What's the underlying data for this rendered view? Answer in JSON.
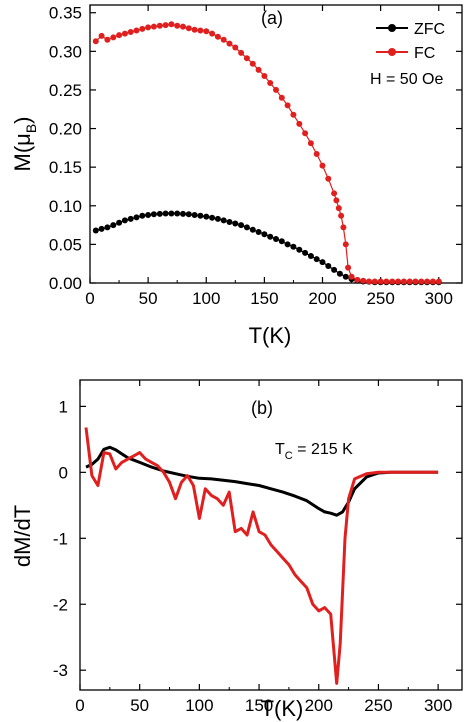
{
  "chart_data": [
    {
      "type": "scatter",
      "panel_label": "(a)",
      "xlabel": "T(K)",
      "ylabel_main": "M(μ",
      "ylabel_sub": "B",
      "ylabel_end": ")",
      "xlim": [
        0,
        320
      ],
      "ylim": [
        0,
        0.36
      ],
      "xticks": [
        0,
        50,
        100,
        150,
        200,
        250,
        300
      ],
      "yticks": [
        0.0,
        0.05,
        0.1,
        0.15,
        0.2,
        0.25,
        0.3,
        0.35
      ],
      "annotation": "H = 50 Oe",
      "legend_position": "top-right",
      "series": [
        {
          "name": "ZFC",
          "color": "#000000",
          "points": [
            [
              5,
              0.068
            ],
            [
              10,
              0.07
            ],
            [
              15,
              0.072
            ],
            [
              20,
              0.075
            ],
            [
              25,
              0.078
            ],
            [
              30,
              0.081
            ],
            [
              35,
              0.083
            ],
            [
              40,
              0.085
            ],
            [
              45,
              0.087
            ],
            [
              50,
              0.088
            ],
            [
              55,
              0.089
            ],
            [
              60,
              0.0895
            ],
            [
              65,
              0.09
            ],
            [
              70,
              0.09
            ],
            [
              75,
              0.09
            ],
            [
              80,
              0.0895
            ],
            [
              85,
              0.089
            ],
            [
              90,
              0.088
            ],
            [
              95,
              0.087
            ],
            [
              100,
              0.086
            ],
            [
              105,
              0.0845
            ],
            [
              110,
              0.083
            ],
            [
              115,
              0.081
            ],
            [
              120,
              0.079
            ],
            [
              125,
              0.077
            ],
            [
              130,
              0.075
            ],
            [
              135,
              0.072
            ],
            [
              140,
              0.069
            ],
            [
              145,
              0.066
            ],
            [
              150,
              0.063
            ],
            [
              155,
              0.06
            ],
            [
              160,
              0.057
            ],
            [
              165,
              0.054
            ],
            [
              170,
              0.05
            ],
            [
              175,
              0.047
            ],
            [
              180,
              0.043
            ],
            [
              185,
              0.039
            ],
            [
              190,
              0.035
            ],
            [
              195,
              0.031
            ],
            [
              200,
              0.027
            ],
            [
              205,
              0.022
            ],
            [
              210,
              0.017
            ],
            [
              215,
              0.012
            ],
            [
              220,
              0.008
            ],
            [
              225,
              0.005
            ],
            [
              230,
              0.003
            ],
            [
              235,
              0.002
            ],
            [
              240,
              0.0015
            ],
            [
              245,
              0.001
            ],
            [
              250,
              0.001
            ],
            [
              255,
              0.001
            ],
            [
              260,
              0.001
            ],
            [
              265,
              0.001
            ],
            [
              270,
              0.001
            ],
            [
              275,
              0.001
            ],
            [
              280,
              0.001
            ],
            [
              285,
              0.001
            ],
            [
              290,
              0.001
            ],
            [
              295,
              0.001
            ],
            [
              300,
              0.001
            ]
          ]
        },
        {
          "name": "FC",
          "color": "#e0201e",
          "points": [
            [
              5,
              0.313
            ],
            [
              10,
              0.32
            ],
            [
              15,
              0.315
            ],
            [
              20,
              0.318
            ],
            [
              25,
              0.321
            ],
            [
              30,
              0.323
            ],
            [
              35,
              0.325
            ],
            [
              40,
              0.327
            ],
            [
              45,
              0.329
            ],
            [
              50,
              0.331
            ],
            [
              55,
              0.332
            ],
            [
              60,
              0.333
            ],
            [
              65,
              0.334
            ],
            [
              70,
              0.335
            ],
            [
              75,
              0.333
            ],
            [
              80,
              0.332
            ],
            [
              85,
              0.33
            ],
            [
              90,
              0.328
            ],
            [
              95,
              0.327
            ],
            [
              100,
              0.326
            ],
            [
              105,
              0.323
            ],
            [
              110,
              0.319
            ],
            [
              115,
              0.315
            ],
            [
              120,
              0.31
            ],
            [
              125,
              0.305
            ],
            [
              130,
              0.298
            ],
            [
              135,
              0.291
            ],
            [
              140,
              0.284
            ],
            [
              145,
              0.276
            ],
            [
              150,
              0.268
            ],
            [
              155,
              0.259
            ],
            [
              160,
              0.25
            ],
            [
              165,
              0.24
            ],
            [
              170,
              0.23
            ],
            [
              175,
              0.218
            ],
            [
              180,
              0.206
            ],
            [
              185,
              0.194
            ],
            [
              190,
              0.181
            ],
            [
              195,
              0.167
            ],
            [
              200,
              0.152
            ],
            [
              205,
              0.135
            ],
            [
              210,
              0.116
            ],
            [
              212,
              0.107
            ],
            [
              214,
              0.097
            ],
            [
              216,
              0.087
            ],
            [
              218,
              0.072
            ],
            [
              220,
              0.05
            ],
            [
              222,
              0.02
            ],
            [
              225,
              0.008
            ],
            [
              230,
              0.004
            ],
            [
              235,
              0.003
            ],
            [
              240,
              0.002
            ],
            [
              245,
              0.002
            ],
            [
              250,
              0.002
            ],
            [
              255,
              0.002
            ],
            [
              260,
              0.002
            ],
            [
              265,
              0.002
            ],
            [
              270,
              0.002
            ],
            [
              275,
              0.002
            ],
            [
              280,
              0.002
            ],
            [
              285,
              0.002
            ],
            [
              290,
              0.002
            ],
            [
              295,
              0.002
            ],
            [
              300,
              0.002
            ]
          ]
        }
      ]
    },
    {
      "type": "line",
      "panel_label": "(b)",
      "xlabel": "T(K)",
      "ylabel": "dM/dT",
      "xlim": [
        0,
        320
      ],
      "ylim": [
        -3.3,
        1.4
      ],
      "xticks": [
        0,
        50,
        100,
        150,
        200,
        250,
        300
      ],
      "yticks": [
        1,
        0,
        -1,
        -2,
        -3
      ],
      "annotation_main": "T",
      "annotation_sub": "C",
      "annotation_end": " = 215 K",
      "series": [
        {
          "name": "ZFC",
          "color": "#000000",
          "points": [
            [
              5,
              0.08
            ],
            [
              10,
              0.12
            ],
            [
              15,
              0.2
            ],
            [
              20,
              0.35
            ],
            [
              25,
              0.38
            ],
            [
              30,
              0.34
            ],
            [
              35,
              0.28
            ],
            [
              40,
              0.22
            ],
            [
              50,
              0.15
            ],
            [
              60,
              0.08
            ],
            [
              70,
              0.02
            ],
            [
              80,
              -0.02
            ],
            [
              90,
              -0.06
            ],
            [
              100,
              -0.09
            ],
            [
              110,
              -0.1
            ],
            [
              120,
              -0.12
            ],
            [
              130,
              -0.14
            ],
            [
              140,
              -0.17
            ],
            [
              150,
              -0.2
            ],
            [
              160,
              -0.25
            ],
            [
              170,
              -0.3
            ],
            [
              180,
              -0.36
            ],
            [
              190,
              -0.43
            ],
            [
              200,
              -0.55
            ],
            [
              205,
              -0.6
            ],
            [
              210,
              -0.62
            ],
            [
              215,
              -0.65
            ],
            [
              220,
              -0.6
            ],
            [
              225,
              -0.45
            ],
            [
              230,
              -0.25
            ],
            [
              240,
              -0.07
            ],
            [
              250,
              -0.01
            ],
            [
              260,
              0
            ],
            [
              270,
              0
            ],
            [
              280,
              0
            ],
            [
              290,
              0
            ],
            [
              300,
              0
            ]
          ]
        },
        {
          "name": "FC",
          "color": "#e0201e",
          "points": [
            [
              5,
              0.68
            ],
            [
              10,
              -0.05
            ],
            [
              15,
              -0.2
            ],
            [
              20,
              0.3
            ],
            [
              25,
              0.28
            ],
            [
              30,
              0.05
            ],
            [
              35,
              0.15
            ],
            [
              40,
              0.2
            ],
            [
              45,
              0.25
            ],
            [
              50,
              0.3
            ],
            [
              55,
              0.2
            ],
            [
              60,
              0.15
            ],
            [
              65,
              0.1
            ],
            [
              70,
              0.0
            ],
            [
              75,
              -0.15
            ],
            [
              80,
              -0.4
            ],
            [
              85,
              -0.15
            ],
            [
              90,
              -0.05
            ],
            [
              95,
              -0.2
            ],
            [
              100,
              -0.7
            ],
            [
              105,
              -0.25
            ],
            [
              110,
              -0.35
            ],
            [
              115,
              -0.4
            ],
            [
              120,
              -0.5
            ],
            [
              125,
              -0.3
            ],
            [
              130,
              -0.9
            ],
            [
              135,
              -0.85
            ],
            [
              140,
              -0.95
            ],
            [
              145,
              -0.6
            ],
            [
              150,
              -0.9
            ],
            [
              155,
              -0.95
            ],
            [
              160,
              -1.1
            ],
            [
              165,
              -1.2
            ],
            [
              170,
              -1.3
            ],
            [
              175,
              -1.4
            ],
            [
              180,
              -1.55
            ],
            [
              185,
              -1.65
            ],
            [
              190,
              -1.75
            ],
            [
              195,
              -2.0
            ],
            [
              200,
              -2.1
            ],
            [
              205,
              -2.05
            ],
            [
              210,
              -2.15
            ],
            [
              215,
              -3.2
            ],
            [
              218,
              -2.6
            ],
            [
              220,
              -1.8
            ],
            [
              222,
              -1.0
            ],
            [
              225,
              -0.4
            ],
            [
              230,
              -0.1
            ],
            [
              240,
              -0.02
            ],
            [
              250,
              0
            ],
            [
              260,
              0
            ],
            [
              270,
              0
            ],
            [
              280,
              0
            ],
            [
              290,
              0
            ],
            [
              300,
              0
            ]
          ]
        }
      ]
    }
  ]
}
